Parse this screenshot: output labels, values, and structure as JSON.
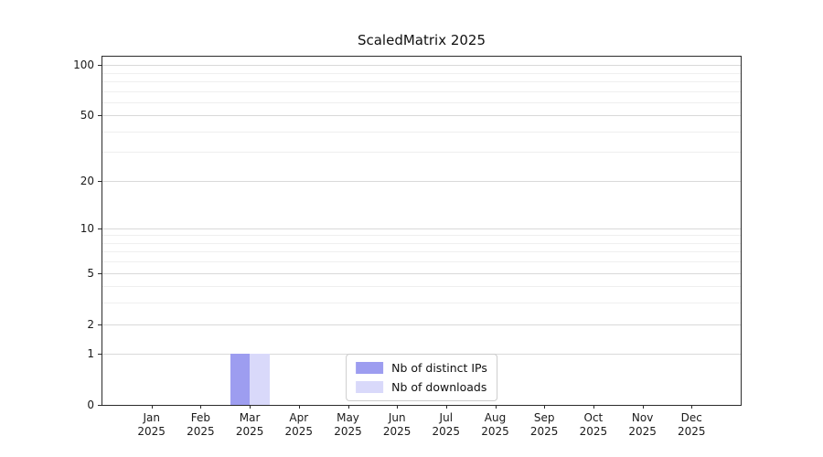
{
  "chart_data": {
    "type": "bar",
    "title": "ScaledMatrix 2025",
    "xlabel": "",
    "ylabel": "",
    "categories": [
      "Jan",
      "Feb",
      "Mar",
      "Apr",
      "May",
      "Jun",
      "Jul",
      "Aug",
      "Sep",
      "Oct",
      "Nov",
      "Dec"
    ],
    "year": "2025",
    "series": [
      {
        "name": "Nb of distinct IPs",
        "color": "#9d9df0",
        "values": [
          0,
          0,
          1,
          0,
          0,
          0,
          0,
          0,
          0,
          0,
          0,
          0
        ]
      },
      {
        "name": "Nb of downloads",
        "color": "#d9d9fa",
        "values": [
          0,
          0,
          1,
          0,
          0,
          0,
          0,
          0,
          0,
          0,
          0,
          0
        ]
      }
    ],
    "y_ticks": [
      0,
      1,
      2,
      5,
      10,
      20,
      50,
      100
    ],
    "y_minor_ticks": [
      3,
      4,
      6,
      7,
      8,
      9,
      30,
      40,
      60,
      70,
      80,
      90
    ],
    "ylim": [
      0,
      112
    ],
    "scale": "log1p",
    "grid": "horizontal",
    "legend_position": "lower center"
  }
}
